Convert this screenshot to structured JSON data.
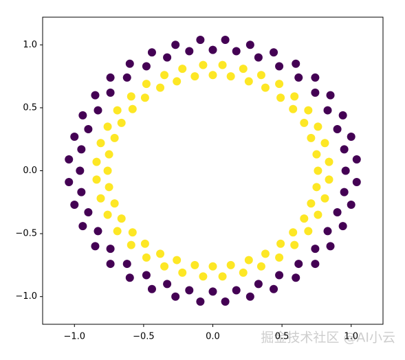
{
  "chart_data": {
    "type": "scatter",
    "xlim": [
      -1.23,
      1.23
    ],
    "ylim": [
      -1.22,
      1.22
    ],
    "xticks": [
      {
        "value": -1,
        "label": "−1.0"
      },
      {
        "value": -0.5,
        "label": "−0.5"
      },
      {
        "value": 0,
        "label": "0.0"
      },
      {
        "value": 0.5,
        "label": "0.5"
      },
      {
        "value": 1,
        "label": "1.0"
      }
    ],
    "yticks": [
      {
        "value": -1,
        "label": "−1.0"
      },
      {
        "value": -0.5,
        "label": "−0.5"
      },
      {
        "value": 0,
        "label": "0.0"
      },
      {
        "value": 0.5,
        "label": "0.5"
      },
      {
        "value": 1,
        "label": "1.0"
      }
    ],
    "watermark": "掘金技术社区 @AI小云",
    "series": [
      {
        "color": "#440154",
        "x": [
          0.96,
          1.04,
          0.95,
          1.0,
          0.9,
          0.94,
          0.83,
          0.85,
          0.74,
          0.74,
          0.62,
          0.6,
          0.48,
          0.44,
          0.33,
          0.27,
          0.17,
          0.09,
          0,
          -0.09,
          -0.17,
          -0.27,
          -0.33,
          -0.44,
          -0.48,
          -0.6,
          -0.62,
          -0.74,
          -0.74,
          -0.85,
          -0.83,
          -0.94,
          -0.9,
          -1.0,
          -0.95,
          -1.04,
          -0.96,
          -1.04,
          -0.95,
          -1.0,
          -0.9,
          -0.94,
          -0.83,
          -0.85,
          -0.74,
          -0.74,
          -0.62,
          -0.6,
          -0.48,
          -0.44,
          -0.33,
          -0.27,
          -0.17,
          -0.09,
          0,
          0.09,
          0.17,
          0.27,
          0.33,
          0.44,
          0.48,
          0.6,
          0.62,
          0.74,
          0.74,
          0.85,
          0.83,
          0.94,
          0.9,
          1.0,
          0.95,
          1.04
        ],
        "y": [
          0,
          0.09,
          0.17,
          0.27,
          0.33,
          0.44,
          0.48,
          0.6,
          0.62,
          0.74,
          0.74,
          0.85,
          0.83,
          0.94,
          0.9,
          1.0,
          0.95,
          1.04,
          0.96,
          1.04,
          0.95,
          1.0,
          0.9,
          0.94,
          0.83,
          0.85,
          0.74,
          0.74,
          0.62,
          0.6,
          0.48,
          0.44,
          0.33,
          0.27,
          0.17,
          0.09,
          0,
          -0.09,
          -0.17,
          -0.27,
          -0.33,
          -0.44,
          -0.48,
          -0.6,
          -0.62,
          -0.74,
          -0.74,
          -0.85,
          -0.83,
          -0.94,
          -0.9,
          -1.0,
          -0.95,
          -1.04,
          -0.96,
          -1.04,
          -0.95,
          -1.0,
          -0.9,
          -0.94,
          -0.83,
          -0.85,
          -0.74,
          -0.74,
          -0.62,
          -0.6,
          -0.48,
          -0.44,
          -0.33,
          -0.27,
          -0.17,
          -0.09
        ]
      },
      {
        "color": "#fde725",
        "x": [
          0.76,
          0.84,
          0.75,
          0.81,
          0.71,
          0.76,
          0.66,
          0.69,
          0.58,
          0.59,
          0.49,
          0.48,
          0.38,
          0.35,
          0.26,
          0.22,
          0.13,
          0.07,
          0,
          -0.07,
          -0.13,
          -0.22,
          -0.26,
          -0.35,
          -0.38,
          -0.48,
          -0.49,
          -0.59,
          -0.58,
          -0.69,
          -0.66,
          -0.76,
          -0.71,
          -0.81,
          -0.75,
          -0.84,
          -0.76,
          -0.84,
          -0.75,
          -0.81,
          -0.71,
          -0.76,
          -0.66,
          -0.69,
          -0.58,
          -0.59,
          -0.49,
          -0.48,
          -0.38,
          -0.35,
          -0.26,
          -0.22,
          -0.13,
          -0.07,
          0,
          0.07,
          0.13,
          0.22,
          0.26,
          0.35,
          0.38,
          0.48,
          0.49,
          0.59,
          0.58,
          0.69,
          0.66,
          0.76,
          0.71,
          0.81,
          0.75,
          0.84
        ],
        "y": [
          0,
          0.07,
          0.13,
          0.22,
          0.26,
          0.35,
          0.38,
          0.48,
          0.49,
          0.59,
          0.58,
          0.69,
          0.66,
          0.76,
          0.71,
          0.81,
          0.75,
          0.84,
          0.76,
          0.84,
          0.75,
          0.81,
          0.71,
          0.76,
          0.66,
          0.69,
          0.58,
          0.59,
          0.49,
          0.48,
          0.38,
          0.35,
          0.26,
          0.22,
          0.13,
          0.07,
          0,
          -0.07,
          -0.13,
          -0.22,
          -0.26,
          -0.35,
          -0.38,
          -0.48,
          -0.49,
          -0.59,
          -0.58,
          -0.69,
          -0.66,
          -0.76,
          -0.71,
          -0.81,
          -0.75,
          -0.84,
          -0.76,
          -0.84,
          -0.75,
          -0.81,
          -0.71,
          -0.76,
          -0.66,
          -0.69,
          -0.58,
          -0.59,
          -0.49,
          -0.48,
          -0.38,
          -0.35,
          -0.26,
          -0.22,
          -0.13,
          -0.07
        ]
      }
    ]
  }
}
